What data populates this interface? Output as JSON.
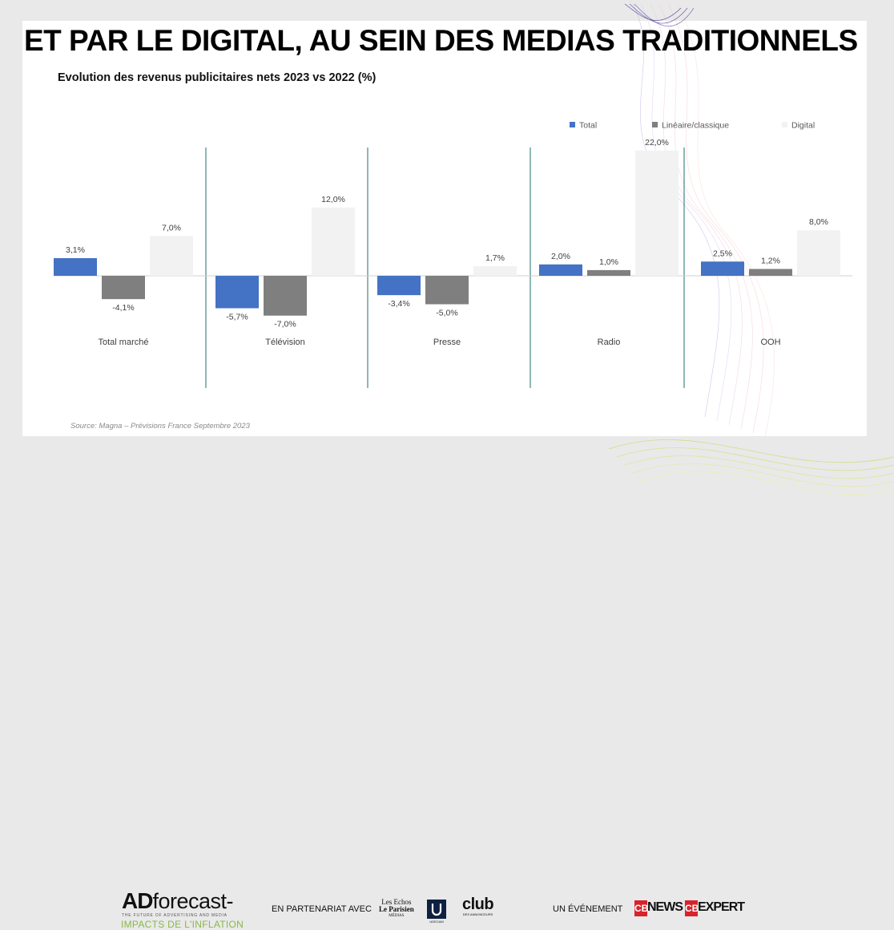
{
  "slide": {
    "title": "ET PAR LE DIGITAL,  AU SEIN DES MEDIAS TRADITIONNELS",
    "source": "Source: Magna – Prévisions France Septembre 2023"
  },
  "chart_data": {
    "type": "bar",
    "title": "Evolution des revenus publicitaires nets 2023 vs 2022 (%)",
    "xlabel": "",
    "ylabel": "",
    "categories": [
      "Total marché",
      "Télévision",
      "Presse",
      "Radio",
      "OOH"
    ],
    "series": [
      {
        "name": "Total",
        "color": "#4472c4",
        "values": [
          3.1,
          -5.7,
          -3.4,
          2.0,
          2.5
        ],
        "labels": [
          "3,1%",
          "-5,7%",
          "-3,4%",
          "2,0%",
          "2,5%"
        ]
      },
      {
        "name": "Linéaire/classique",
        "color": "#7f7f7f",
        "values": [
          -4.1,
          -7.0,
          -5.0,
          1.0,
          1.2
        ],
        "labels": [
          "-4,1%",
          "-7,0%",
          "-5,0%",
          "1,0%",
          "1,2%"
        ]
      },
      {
        "name": "Digital",
        "color": "#f2f2f2",
        "values": [
          7.0,
          12.0,
          1.7,
          22.0,
          8.0
        ],
        "labels": [
          "7,0%",
          "12,0%",
          "1,7%",
          "22,0%",
          "8,0%"
        ]
      }
    ],
    "ylim": [
      -20,
      22
    ],
    "legend_position": "top-right",
    "grid": false,
    "group_separators_color": "#1f6f6b"
  },
  "footer": {
    "logo_left": "AD",
    "logo_right": "forecast-",
    "logo_tagline": "THE FUTURE OF ADVERTISING AND MEDIA",
    "logo_sub": "IMPACTS DE L'INFLATION",
    "partner_label": "EN PARTENARIAT AVEC",
    "partner_logos": {
      "echos_line1": "Les Echos",
      "echos_line2": "Le Parisien",
      "echos_line3": "MÉDIAS",
      "udecam": "UDECAM",
      "club_line1": "club",
      "club_line2": "DES ANNONCEURS"
    },
    "event_label": "UN ÉVÉNEMENT",
    "event_logos": {
      "cb": "CB",
      "news": "NEWS",
      "expert": "EXPERT"
    }
  }
}
